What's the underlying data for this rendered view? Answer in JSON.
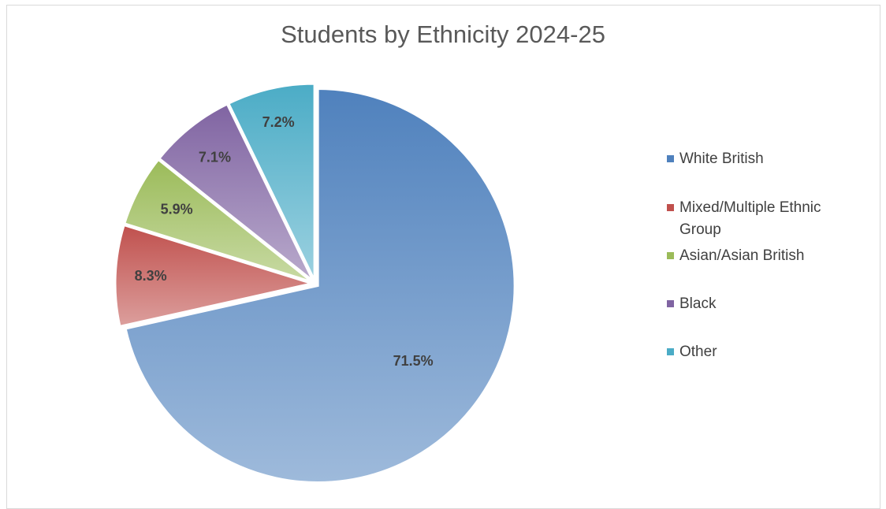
{
  "chart_data": {
    "type": "pie",
    "title": "Students by Ethnicity 2024-25",
    "categories": [
      "White British",
      "Mixed/Multiple Ethnic Group",
      "Asian/Asian British",
      "Black",
      "Other"
    ],
    "values": [
      71.5,
      8.3,
      5.9,
      7.1,
      7.2
    ],
    "data_labels": [
      "71.5%",
      "8.3%",
      "5.9%",
      "7.1%",
      "7.2%"
    ],
    "colors": [
      "#4f81bd",
      "#c0504d",
      "#9bbb59",
      "#8064a2",
      "#4bacc6"
    ],
    "legend_position": "right",
    "start_angle": "12 o'clock, clockwise",
    "exploded": true
  }
}
